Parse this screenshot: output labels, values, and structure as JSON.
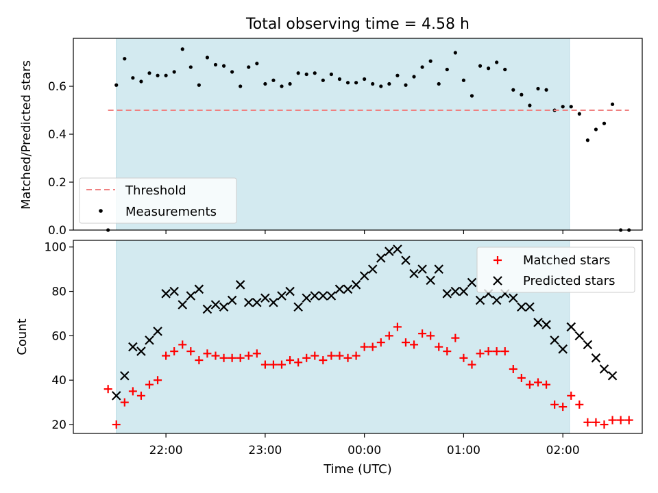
{
  "chart_data": {
    "type": "scatter",
    "title": "Total observing time = 4.58 h",
    "xlabel": "Time (UTC)",
    "x_ticks": [
      "22:00",
      "23:00",
      "00:00",
      "01:00",
      "02:00"
    ],
    "observing_window": {
      "start": "21:30",
      "end": "02:04",
      "color": "#d3eaf0"
    },
    "panels": [
      {
        "name": "ratio",
        "ylabel": "Matched/Predicted stars",
        "ylim": [
          0,
          0.8
        ],
        "yticks": [
          "0.0",
          "0.2",
          "0.4",
          "0.6"
        ],
        "yticks_values": [
          0,
          0.2,
          0.4,
          0.6
        ],
        "legend_position": "lower-left",
        "threshold": {
          "name": "Threshold",
          "value": 0.5,
          "x_start": "21:25",
          "x_end": "02:40",
          "color": "#f08080"
        },
        "series": [
          {
            "name": "Measurements",
            "marker": "dot",
            "color": "#000000",
            "x": [
              "21:25",
              "21:30",
              "21:35",
              "21:40",
              "21:45",
              "21:50",
              "21:55",
              "22:00",
              "22:05",
              "22:10",
              "22:15",
              "22:20",
              "22:25",
              "22:30",
              "22:35",
              "22:40",
              "22:45",
              "22:50",
              "22:55",
              "23:00",
              "23:05",
              "23:10",
              "23:15",
              "23:20",
              "23:25",
              "23:30",
              "23:35",
              "23:40",
              "23:45",
              "23:50",
              "23:55",
              "00:00",
              "00:05",
              "00:10",
              "00:15",
              "00:20",
              "00:25",
              "00:30",
              "00:35",
              "00:40",
              "00:45",
              "00:50",
              "00:55",
              "01:00",
              "01:05",
              "01:10",
              "01:15",
              "01:20",
              "01:25",
              "01:30",
              "01:35",
              "01:40",
              "01:45",
              "01:50",
              "01:55",
              "02:00",
              "02:05",
              "02:10",
              "02:15",
              "02:20",
              "02:25",
              "02:30",
              "02:35",
              "02:40"
            ],
            "y": [
              0.0,
              0.605,
              0.715,
              0.635,
              0.62,
              0.655,
              0.645,
              0.645,
              0.66,
              0.755,
              0.68,
              0.605,
              0.72,
              0.69,
              0.685,
              0.66,
              0.6,
              0.68,
              0.695,
              0.61,
              0.625,
              0.6,
              0.61,
              0.655,
              0.65,
              0.655,
              0.625,
              0.65,
              0.63,
              0.615,
              0.615,
              0.63,
              0.61,
              0.6,
              0.61,
              0.645,
              0.605,
              0.64,
              0.68,
              0.705,
              0.61,
              0.67,
              0.74,
              0.625,
              0.56,
              0.685,
              0.675,
              0.7,
              0.67,
              0.585,
              0.565,
              0.52,
              0.59,
              0.585,
              0.5,
              0.515,
              0.515,
              0.485,
              0.375,
              0.42,
              0.445,
              0.525,
              0.0,
              0.0
            ]
          }
        ]
      },
      {
        "name": "counts",
        "ylabel": "Count",
        "ylim": [
          16,
          103
        ],
        "yticks": [
          "20",
          "40",
          "60",
          "80",
          "100"
        ],
        "yticks_values": [
          20,
          40,
          60,
          80,
          100
        ],
        "legend_position": "upper-right",
        "series": [
          {
            "name": "Matched stars",
            "marker": "plus",
            "color": "#ff0000",
            "x": [
              "21:25",
              "21:30",
              "21:35",
              "21:40",
              "21:45",
              "21:50",
              "21:55",
              "22:00",
              "22:05",
              "22:10",
              "22:15",
              "22:20",
              "22:25",
              "22:30",
              "22:35",
              "22:40",
              "22:45",
              "22:50",
              "22:55",
              "23:00",
              "23:05",
              "23:10",
              "23:15",
              "23:20",
              "23:25",
              "23:30",
              "23:35",
              "23:40",
              "23:45",
              "23:50",
              "23:55",
              "00:00",
              "00:05",
              "00:10",
              "00:15",
              "00:20",
              "00:25",
              "00:30",
              "00:35",
              "00:40",
              "00:45",
              "00:50",
              "00:55",
              "01:00",
              "01:05",
              "01:10",
              "01:15",
              "01:20",
              "01:25",
              "01:30",
              "01:35",
              "01:40",
              "01:45",
              "01:50",
              "01:55",
              "02:00",
              "02:05",
              "02:10",
              "02:15",
              "02:20",
              "02:25",
              "02:30",
              "02:35",
              "02:40"
            ],
            "y": [
              36,
              20,
              30,
              35,
              33,
              38,
              40,
              51,
              53,
              56,
              53,
              49,
              52,
              51,
              50,
              50,
              50,
              51,
              52,
              47,
              47,
              47,
              49,
              48,
              50,
              51,
              49,
              51,
              51,
              50,
              51,
              55,
              55,
              57,
              60,
              64,
              57,
              56,
              61,
              60,
              55,
              53,
              59,
              50,
              47,
              52,
              53,
              53,
              53,
              45,
              41,
              38,
              39,
              38,
              29,
              28,
              33,
              29,
              21,
              21,
              20,
              22,
              22,
              22
            ]
          },
          {
            "name": "Predicted stars",
            "marker": "x",
            "color": "#000000",
            "x": [
              "21:30",
              "21:35",
              "21:40",
              "21:45",
              "21:50",
              "21:55",
              "22:00",
              "22:05",
              "22:10",
              "22:15",
              "22:20",
              "22:25",
              "22:30",
              "22:35",
              "22:40",
              "22:45",
              "22:50",
              "22:55",
              "23:00",
              "23:05",
              "23:10",
              "23:15",
              "23:20",
              "23:25",
              "23:30",
              "23:35",
              "23:40",
              "23:45",
              "23:50",
              "23:55",
              "00:00",
              "00:05",
              "00:10",
              "00:15",
              "00:20",
              "00:25",
              "00:30",
              "00:35",
              "00:40",
              "00:45",
              "00:50",
              "00:55",
              "01:00",
              "01:05",
              "01:10",
              "01:15",
              "01:20",
              "01:25",
              "01:30",
              "01:35",
              "01:40",
              "01:45",
              "01:50",
              "01:55",
              "02:00",
              "02:05",
              "02:10",
              "02:15",
              "02:20",
              "02:25",
              "02:30"
            ],
            "y": [
              33,
              42,
              55,
              53,
              58,
              62,
              79,
              80,
              74,
              78,
              81,
              72,
              74,
              73,
              76,
              83,
              75,
              75,
              77,
              75,
              78,
              80,
              73,
              77,
              78,
              78,
              78,
              81,
              81,
              83,
              87,
              90,
              95,
              98,
              99,
              94,
              88,
              90,
              85,
              90,
              79,
              80,
              80,
              84,
              76,
              79,
              76,
              79,
              77,
              73,
              73,
              66,
              65,
              58,
              54,
              64,
              60,
              56,
              50,
              45,
              42
            ]
          }
        ]
      }
    ]
  }
}
